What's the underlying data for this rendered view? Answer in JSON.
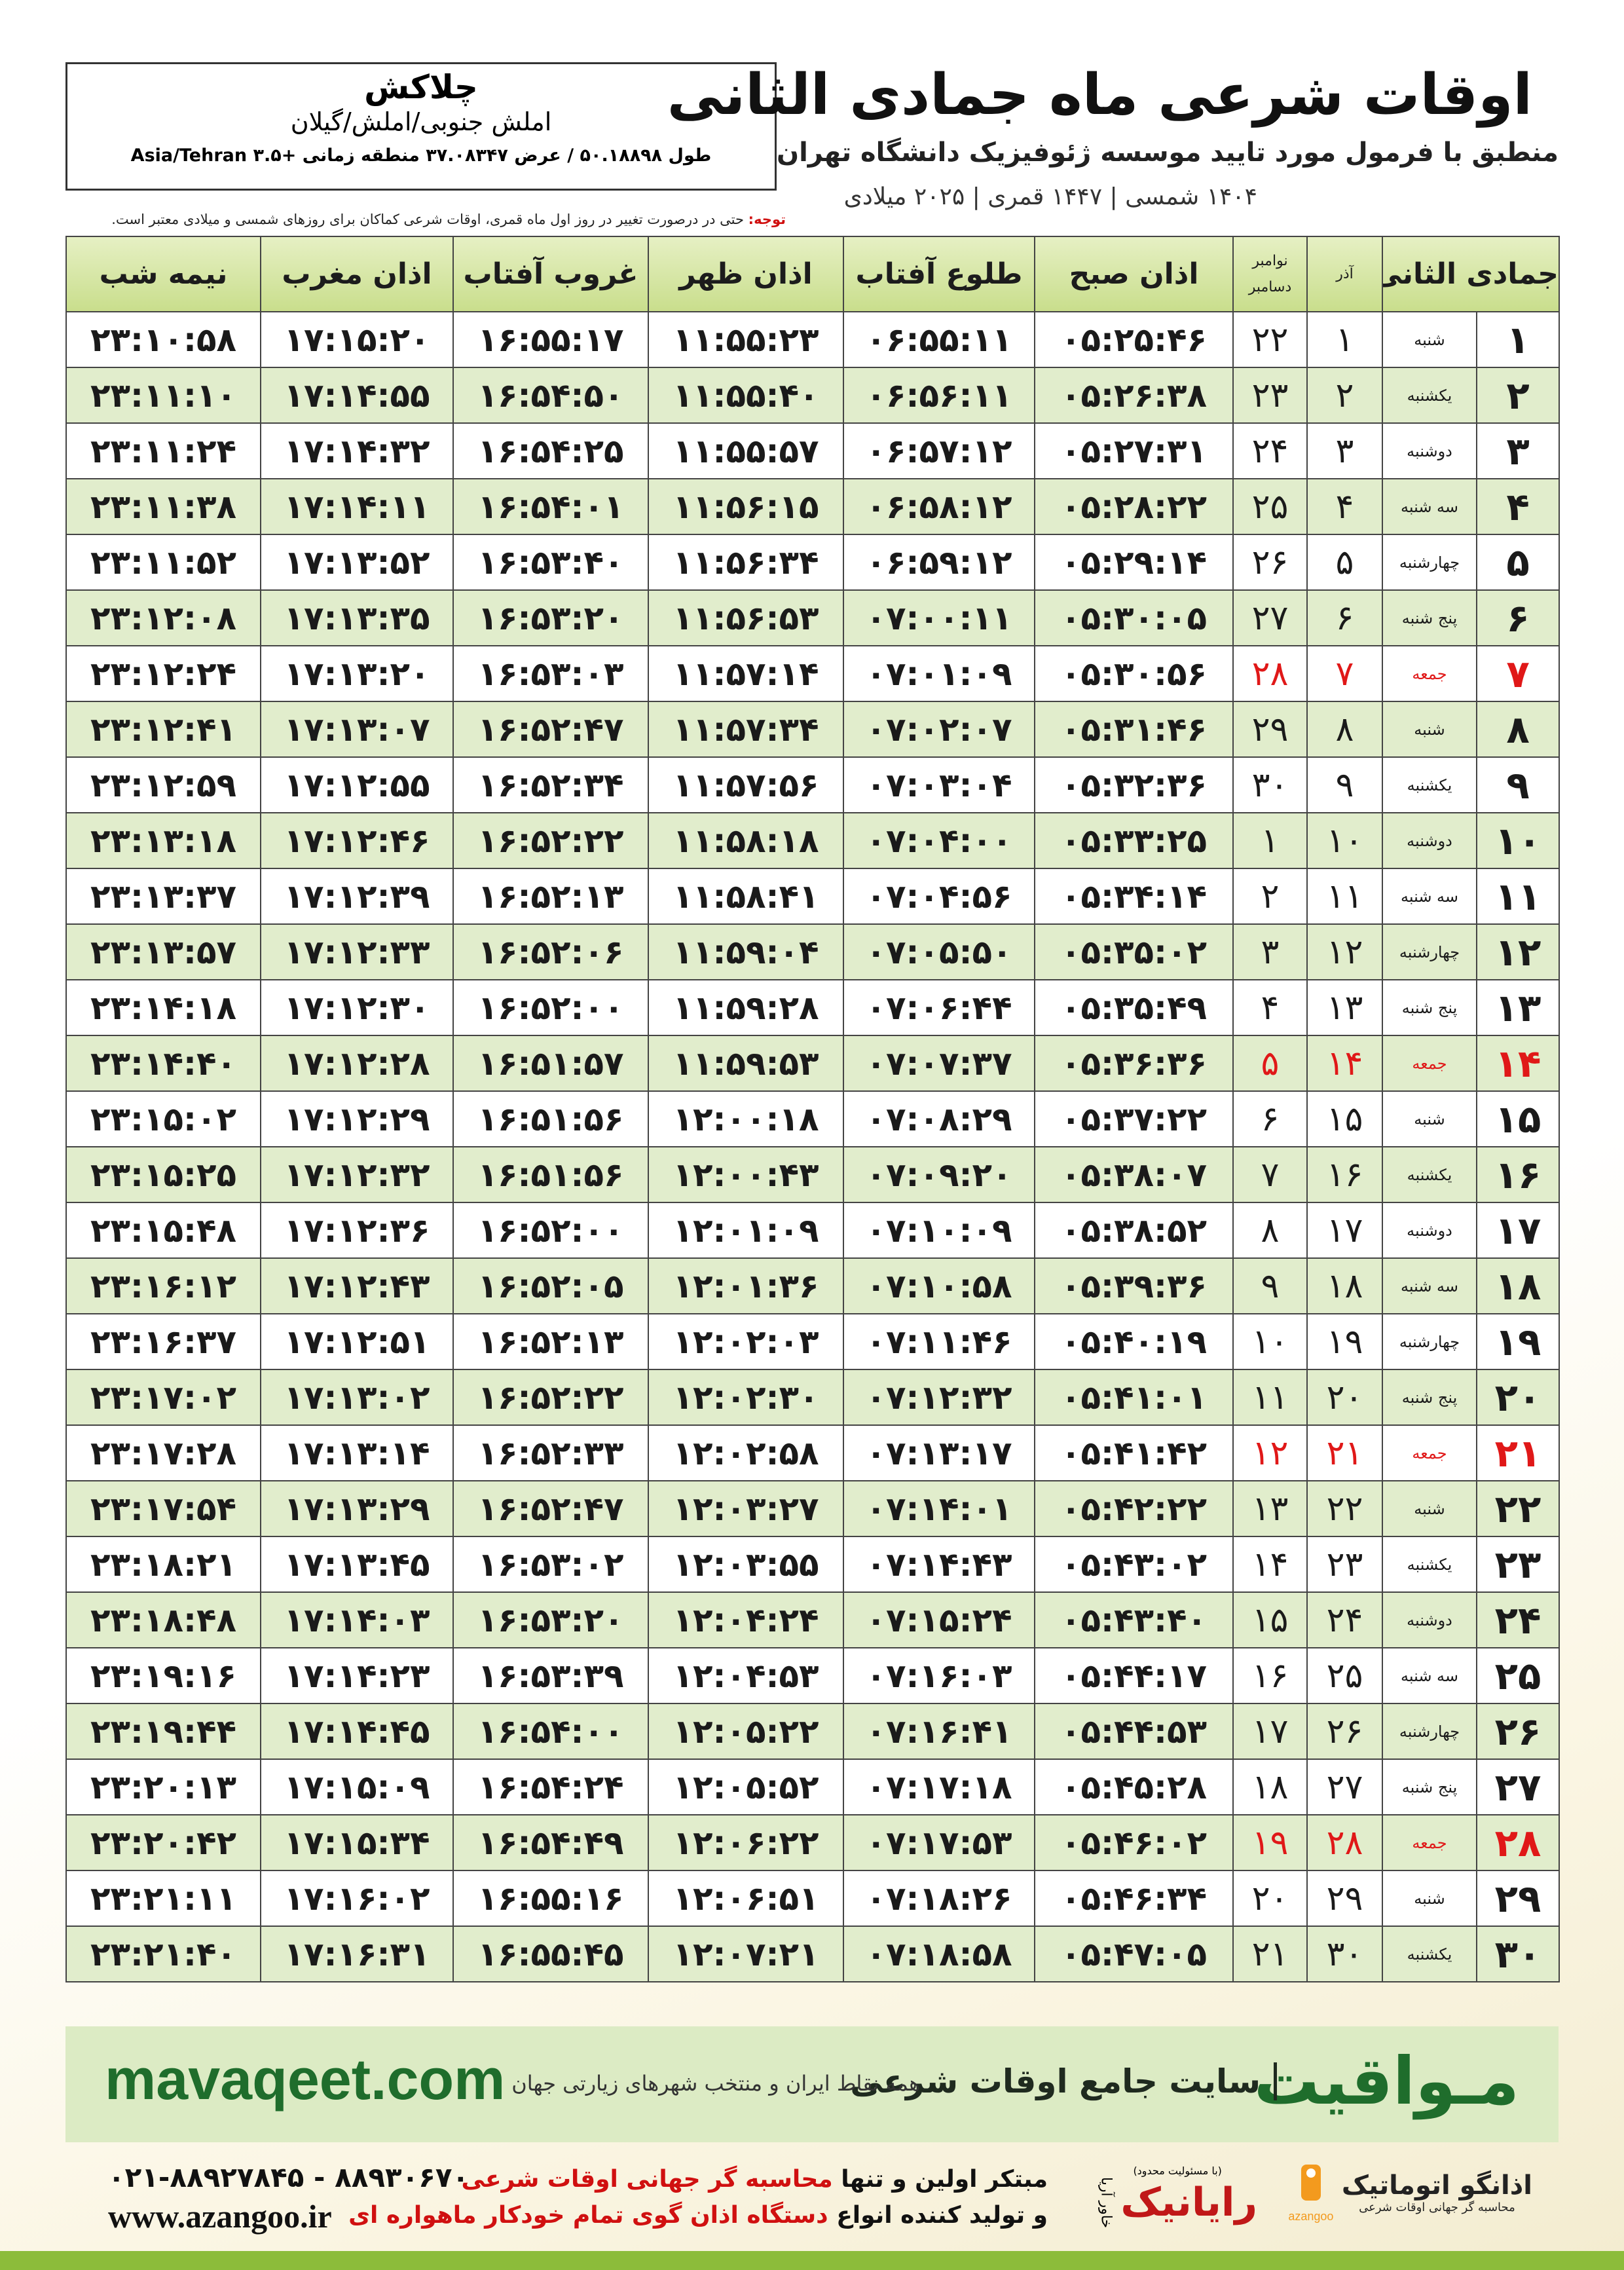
{
  "header": {
    "place": "چلاکش",
    "region": "املش جنوبی/املش/گیلان",
    "coords": "طول ۵۰.۱۸۸۹۸ / عرض ۳۷.۰۸۳۴۷ منطقه زمانی +۳.۵ Asia/Tehran",
    "title": "اوقات شرعی ماه جمادی الثانی",
    "subtitle": "منطبق با فرمول مورد تایید موسسه ژئوفیزیک دانشگاه تهران",
    "years": "۱۴۰۴ شمسی | ۱۴۴۷ قمری | ۲۰۲۵ میلادی",
    "note_label": "توجه:",
    "note": "حتی در درصورت تغییر در روز اول ماه قمری، اوقات شرعی کماکان برای روزهای شمسی و میلادی معتبر است."
  },
  "table": {
    "columns": [
      "جمادی الثانی",
      "آذر",
      "نوامبر",
      "دسامبر",
      "اذان صبح",
      "طلوع آفتاب",
      "اذان ظهر",
      "غروب آفتاب",
      "اذان مغرب",
      "نیمه شب"
    ],
    "rows": [
      [
        "۱",
        "شنبه",
        "۱",
        "۲۲",
        "۰۵:۲۵:۴۶",
        "۰۶:۵۵:۱۱",
        "۱۱:۵۵:۲۳",
        "۱۶:۵۵:۱۷",
        "۱۷:۱۵:۲۰",
        "۲۳:۱۰:۵۸"
      ],
      [
        "۲",
        "یکشنبه",
        "۲",
        "۲۳",
        "۰۵:۲۶:۳۸",
        "۰۶:۵۶:۱۱",
        "۱۱:۵۵:۴۰",
        "۱۶:۵۴:۵۰",
        "۱۷:۱۴:۵۵",
        "۲۳:۱۱:۱۰"
      ],
      [
        "۳",
        "دوشنبه",
        "۳",
        "۲۴",
        "۰۵:۲۷:۳۱",
        "۰۶:۵۷:۱۲",
        "۱۱:۵۵:۵۷",
        "۱۶:۵۴:۲۵",
        "۱۷:۱۴:۳۲",
        "۲۳:۱۱:۲۴"
      ],
      [
        "۴",
        "سه شنبه",
        "۴",
        "۲۵",
        "۰۵:۲۸:۲۲",
        "۰۶:۵۸:۱۲",
        "۱۱:۵۶:۱۵",
        "۱۶:۵۴:۰۱",
        "۱۷:۱۴:۱۱",
        "۲۳:۱۱:۳۸"
      ],
      [
        "۵",
        "چهارشنبه",
        "۵",
        "۲۶",
        "۰۵:۲۹:۱۴",
        "۰۶:۵۹:۱۲",
        "۱۱:۵۶:۳۴",
        "۱۶:۵۳:۴۰",
        "۱۷:۱۳:۵۲",
        "۲۳:۱۱:۵۲"
      ],
      [
        "۶",
        "پنج شنبه",
        "۶",
        "۲۷",
        "۰۵:۳۰:۰۵",
        "۰۷:۰۰:۱۱",
        "۱۱:۵۶:۵۳",
        "۱۶:۵۳:۲۰",
        "۱۷:۱۳:۳۵",
        "۲۳:۱۲:۰۸"
      ],
      [
        "۷",
        "جمعه",
        "۷",
        "۲۸",
        "۰۵:۳۰:۵۶",
        "۰۷:۰۱:۰۹",
        "۱۱:۵۷:۱۴",
        "۱۶:۵۳:۰۳",
        "۱۷:۱۳:۲۰",
        "۲۳:۱۲:۲۴"
      ],
      [
        "۸",
        "شنبه",
        "۸",
        "۲۹",
        "۰۵:۳۱:۴۶",
        "۰۷:۰۲:۰۷",
        "۱۱:۵۷:۳۴",
        "۱۶:۵۲:۴۷",
        "۱۷:۱۳:۰۷",
        "۲۳:۱۲:۴۱"
      ],
      [
        "۹",
        "یکشنبه",
        "۹",
        "۳۰",
        "۰۵:۳۲:۳۶",
        "۰۷:۰۳:۰۴",
        "۱۱:۵۷:۵۶",
        "۱۶:۵۲:۳۴",
        "۱۷:۱۲:۵۵",
        "۲۳:۱۲:۵۹"
      ],
      [
        "۱۰",
        "دوشنبه",
        "۱۰",
        "۱",
        "۰۵:۳۳:۲۵",
        "۰۷:۰۴:۰۰",
        "۱۱:۵۸:۱۸",
        "۱۶:۵۲:۲۲",
        "۱۷:۱۲:۴۶",
        "۲۳:۱۳:۱۸"
      ],
      [
        "۱۱",
        "سه شنبه",
        "۱۱",
        "۲",
        "۰۵:۳۴:۱۴",
        "۰۷:۰۴:۵۶",
        "۱۱:۵۸:۴۱",
        "۱۶:۵۲:۱۳",
        "۱۷:۱۲:۳۹",
        "۲۳:۱۳:۳۷"
      ],
      [
        "۱۲",
        "چهارشنبه",
        "۱۲",
        "۳",
        "۰۵:۳۵:۰۲",
        "۰۷:۰۵:۵۰",
        "۱۱:۵۹:۰۴",
        "۱۶:۵۲:۰۶",
        "۱۷:۱۲:۳۳",
        "۲۳:۱۳:۵۷"
      ],
      [
        "۱۳",
        "پنج شنبه",
        "۱۳",
        "۴",
        "۰۵:۳۵:۴۹",
        "۰۷:۰۶:۴۴",
        "۱۱:۵۹:۲۸",
        "۱۶:۵۲:۰۰",
        "۱۷:۱۲:۳۰",
        "۲۳:۱۴:۱۸"
      ],
      [
        "۱۴",
        "جمعه",
        "۱۴",
        "۵",
        "۰۵:۳۶:۳۶",
        "۰۷:۰۷:۳۷",
        "۱۱:۵۹:۵۳",
        "۱۶:۵۱:۵۷",
        "۱۷:۱۲:۲۸",
        "۲۳:۱۴:۴۰"
      ],
      [
        "۱۵",
        "شنبه",
        "۱۵",
        "۶",
        "۰۵:۳۷:۲۲",
        "۰۷:۰۸:۲۹",
        "۱۲:۰۰:۱۸",
        "۱۶:۵۱:۵۶",
        "۱۷:۱۲:۲۹",
        "۲۳:۱۵:۰۲"
      ],
      [
        "۱۶",
        "یکشنبه",
        "۱۶",
        "۷",
        "۰۵:۳۸:۰۷",
        "۰۷:۰۹:۲۰",
        "۱۲:۰۰:۴۳",
        "۱۶:۵۱:۵۶",
        "۱۷:۱۲:۳۲",
        "۲۳:۱۵:۲۵"
      ],
      [
        "۱۷",
        "دوشنبه",
        "۱۷",
        "۸",
        "۰۵:۳۸:۵۲",
        "۰۷:۱۰:۰۹",
        "۱۲:۰۱:۰۹",
        "۱۶:۵۲:۰۰",
        "۱۷:۱۲:۳۶",
        "۲۳:۱۵:۴۸"
      ],
      [
        "۱۸",
        "سه شنبه",
        "۱۸",
        "۹",
        "۰۵:۳۹:۳۶",
        "۰۷:۱۰:۵۸",
        "۱۲:۰۱:۳۶",
        "۱۶:۵۲:۰۵",
        "۱۷:۱۲:۴۳",
        "۲۳:۱۶:۱۲"
      ],
      [
        "۱۹",
        "چهارشنبه",
        "۱۹",
        "۱۰",
        "۰۵:۴۰:۱۹",
        "۰۷:۱۱:۴۶",
        "۱۲:۰۲:۰۳",
        "۱۶:۵۲:۱۳",
        "۱۷:۱۲:۵۱",
        "۲۳:۱۶:۳۷"
      ],
      [
        "۲۰",
        "پنج شنبه",
        "۲۰",
        "۱۱",
        "۰۵:۴۱:۰۱",
        "۰۷:۱۲:۳۲",
        "۱۲:۰۲:۳۰",
        "۱۶:۵۲:۲۲",
        "۱۷:۱۳:۰۲",
        "۲۳:۱۷:۰۲"
      ],
      [
        "۲۱",
        "جمعه",
        "۲۱",
        "۱۲",
        "۰۵:۴۱:۴۲",
        "۰۷:۱۳:۱۷",
        "۱۲:۰۲:۵۸",
        "۱۶:۵۲:۳۳",
        "۱۷:۱۳:۱۴",
        "۲۳:۱۷:۲۸"
      ],
      [
        "۲۲",
        "شنبه",
        "۲۲",
        "۱۳",
        "۰۵:۴۲:۲۲",
        "۰۷:۱۴:۰۱",
        "۱۲:۰۳:۲۷",
        "۱۶:۵۲:۴۷",
        "۱۷:۱۳:۲۹",
        "۲۳:۱۷:۵۴"
      ],
      [
        "۲۳",
        "یکشنبه",
        "۲۳",
        "۱۴",
        "۰۵:۴۳:۰۲",
        "۰۷:۱۴:۴۳",
        "۱۲:۰۳:۵۵",
        "۱۶:۵۳:۰۲",
        "۱۷:۱۳:۴۵",
        "۲۳:۱۸:۲۱"
      ],
      [
        "۲۴",
        "دوشنبه",
        "۲۴",
        "۱۵",
        "۰۵:۴۳:۴۰",
        "۰۷:۱۵:۲۴",
        "۱۲:۰۴:۲۴",
        "۱۶:۵۳:۲۰",
        "۱۷:۱۴:۰۳",
        "۲۳:۱۸:۴۸"
      ],
      [
        "۲۵",
        "سه شنبه",
        "۲۵",
        "۱۶",
        "۰۵:۴۴:۱۷",
        "۰۷:۱۶:۰۳",
        "۱۲:۰۴:۵۳",
        "۱۶:۵۳:۳۹",
        "۱۷:۱۴:۲۳",
        "۲۳:۱۹:۱۶"
      ],
      [
        "۲۶",
        "چهارشنبه",
        "۲۶",
        "۱۷",
        "۰۵:۴۴:۵۳",
        "۰۷:۱۶:۴۱",
        "۱۲:۰۵:۲۲",
        "۱۶:۵۴:۰۰",
        "۱۷:۱۴:۴۵",
        "۲۳:۱۹:۴۴"
      ],
      [
        "۲۷",
        "پنج شنبه",
        "۲۷",
        "۱۸",
        "۰۵:۴۵:۲۸",
        "۰۷:۱۷:۱۸",
        "۱۲:۰۵:۵۲",
        "۱۶:۵۴:۲۴",
        "۱۷:۱۵:۰۹",
        "۲۳:۲۰:۱۳"
      ],
      [
        "۲۸",
        "جمعه",
        "۲۸",
        "۱۹",
        "۰۵:۴۶:۰۲",
        "۰۷:۱۷:۵۳",
        "۱۲:۰۶:۲۲",
        "۱۶:۵۴:۴۹",
        "۱۷:۱۵:۳۴",
        "۲۳:۲۰:۴۲"
      ],
      [
        "۲۹",
        "شنبه",
        "۲۹",
        "۲۰",
        "۰۵:۴۶:۳۴",
        "۰۷:۱۸:۲۶",
        "۱۲:۰۶:۵۱",
        "۱۶:۵۵:۱۶",
        "۱۷:۱۶:۰۲",
        "۲۳:۲۱:۱۱"
      ],
      [
        "۳۰",
        "یکشنبه",
        "۳۰",
        "۲۱",
        "۰۵:۴۷:۰۵",
        "۰۷:۱۸:۵۸",
        "۱۲:۰۷:۲۱",
        "۱۶:۵۵:۴۵",
        "۱۷:۱۶:۳۱",
        "۲۳:۲۱:۴۰"
      ]
    ]
  },
  "banner": {
    "brand": "مـواقیت",
    "slogan": "سایت جامع اوقات شرعی",
    "tagline": "همه نقاط ایران و منتخب شهرهای زیارتی جهان",
    "url": "mavaqeet.com"
  },
  "footer": {
    "phone": "۰۲۱-۸۸۹۲۷۸۴۵ - ۸۸۹۳۰۶۷۰",
    "website": "www.azangoo.ir",
    "line1_a": "مبتکر اولین و تنها",
    "line1_b": "محاسبه گر جهانی اوقات شرعی",
    "line2_a": "و تولید کننده انواع",
    "line2_b": "دستگاه اذان گوی تمام خودکار ماهواره ای",
    "logo1_note": "(با مسئولیت محدود)",
    "logo1_sub": "خاور آریا",
    "logo1": "رایانیک",
    "logo2": "اذانگو اتوماتیک",
    "logo2_sub": "محاسبه گر جهانی اوقات شرعی",
    "logo2_en": "azangoo"
  }
}
